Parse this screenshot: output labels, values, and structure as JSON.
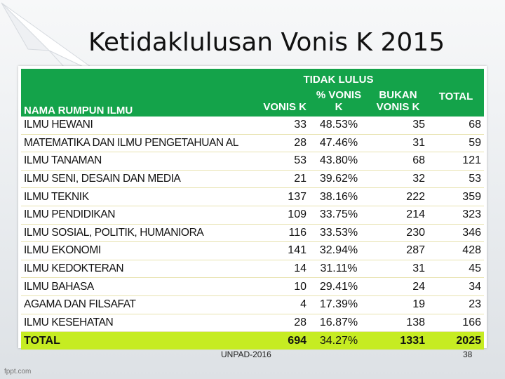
{
  "slide": {
    "title": "Ketidaklulusan Vonis K 2015",
    "footer": "UNPAD-2016",
    "page_number": "38",
    "watermark": "fppt.com"
  },
  "table": {
    "headers": {
      "name": "NAMA RUMPUN ILMU",
      "group": "TIDAK LULUS",
      "vonis_k": "VONIS K",
      "pct_vonis_line1": "% VONIS",
      "pct_vonis_line2": "K",
      "bukan_line1": "BUKAN",
      "bukan_line2": "VONIS K",
      "total": "TOTAL"
    },
    "rows": [
      {
        "name": "ILMU HEWANI",
        "vonis_k": "33",
        "pct": "48.53%",
        "bukan": "35",
        "total": "68"
      },
      {
        "name": "MATEMATIKA DAN ILMU PENGETAHUAN AL",
        "vonis_k": "28",
        "pct": "47.46%",
        "bukan": "31",
        "total": "59"
      },
      {
        "name": "ILMU TANAMAN",
        "vonis_k": "53",
        "pct": "43.80%",
        "bukan": "68",
        "total": "121"
      },
      {
        "name": "ILMU SENI, DESAIN DAN MEDIA",
        "vonis_k": "21",
        "pct": "39.62%",
        "bukan": "32",
        "total": "53"
      },
      {
        "name": "ILMU TEKNIK",
        "vonis_k": "137",
        "pct": "38.16%",
        "bukan": "222",
        "total": "359"
      },
      {
        "name": "ILMU PENDIDIKAN",
        "vonis_k": "109",
        "pct": "33.75%",
        "bukan": "214",
        "total": "323"
      },
      {
        "name": "ILMU SOSIAL, POLITIK, HUMANIORA",
        "vonis_k": "116",
        "pct": "33.53%",
        "bukan": "230",
        "total": "346"
      },
      {
        "name": "ILMU EKONOMI",
        "vonis_k": "141",
        "pct": "32.94%",
        "bukan": "287",
        "total": "428"
      },
      {
        "name": "ILMU KEDOKTERAN",
        "vonis_k": "14",
        "pct": "31.11%",
        "bukan": "31",
        "total": "45"
      },
      {
        "name": "ILMU BAHASA",
        "vonis_k": "10",
        "pct": "29.41%",
        "bukan": "24",
        "total": "34"
      },
      {
        "name": "AGAMA DAN FILSAFAT",
        "vonis_k": "4",
        "pct": "17.39%",
        "bukan": "19",
        "total": "23"
      },
      {
        "name": "ILMU KESEHATAN",
        "vonis_k": "28",
        "pct": "16.87%",
        "bukan": "138",
        "total": "166"
      }
    ],
    "total_row": {
      "name": "TOTAL",
      "vonis_k": "694",
      "pct": "34.27%",
      "bukan": "1331",
      "total": "2025"
    }
  },
  "colors": {
    "header_green": "#14a34a",
    "total_highlight": "#c6ec22",
    "row_divider": "#e8e3b0"
  }
}
